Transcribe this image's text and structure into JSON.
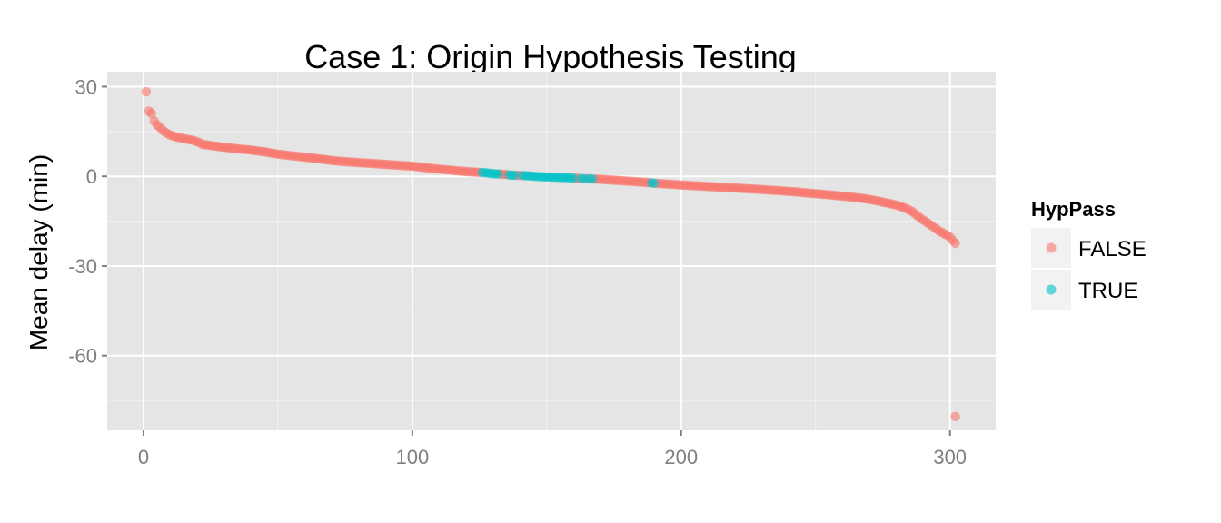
{
  "chart_data": {
    "type": "scatter",
    "title": "Case 1: Origin Hypothesis Testing",
    "xlabel": "",
    "ylabel": "Mean delay (min)",
    "xlim": [
      -13.5,
      317
    ],
    "ylim": [
      -85,
      35
    ],
    "x_ticks": [
      0,
      100,
      200,
      300
    ],
    "y_ticks": [
      30,
      0,
      -30,
      -60
    ],
    "grid": true,
    "legend": {
      "title": "HypPass",
      "position": "right",
      "entries": [
        {
          "label": "FALSE",
          "color": "#F8766D"
        },
        {
          "label": "TRUE",
          "color": "#00BFC4"
        }
      ]
    },
    "series": [
      {
        "name": "FALSE",
        "color": "#F8766D",
        "curve": [
          [
            1,
            28.3
          ],
          [
            2,
            21.8
          ],
          [
            3,
            21.0
          ],
          [
            4,
            18.5
          ],
          [
            5,
            17.2
          ],
          [
            6,
            16.5
          ],
          [
            7,
            15.5
          ],
          [
            8,
            14.8
          ],
          [
            9,
            14.3
          ],
          [
            10,
            13.8
          ],
          [
            12,
            13.2
          ],
          [
            15,
            12.6
          ],
          [
            18,
            12.1
          ],
          [
            20,
            11.6
          ],
          [
            22,
            10.7
          ],
          [
            25,
            10.3
          ],
          [
            30,
            9.7
          ],
          [
            35,
            9.2
          ],
          [
            40,
            8.8
          ],
          [
            45,
            8.2
          ],
          [
            50,
            7.4
          ],
          [
            55,
            6.9
          ],
          [
            60,
            6.4
          ],
          [
            65,
            5.9
          ],
          [
            70,
            5.3
          ],
          [
            75,
            4.9
          ],
          [
            80,
            4.6
          ],
          [
            85,
            4.3
          ],
          [
            90,
            4.0
          ],
          [
            95,
            3.7
          ],
          [
            100,
            3.4
          ],
          [
            105,
            2.9
          ],
          [
            110,
            2.4
          ],
          [
            115,
            2.0
          ],
          [
            120,
            1.6
          ],
          [
            125,
            1.3
          ],
          [
            130,
            0.9
          ],
          [
            135,
            0.6
          ],
          [
            140,
            0.3
          ],
          [
            145,
            0.0
          ],
          [
            150,
            -0.2
          ],
          [
            155,
            -0.4
          ],
          [
            160,
            -0.6
          ],
          [
            165,
            -0.8
          ],
          [
            170,
            -1.0
          ],
          [
            175,
            -1.3
          ],
          [
            180,
            -1.6
          ],
          [
            185,
            -1.9
          ],
          [
            190,
            -2.3
          ],
          [
            195,
            -2.6
          ],
          [
            200,
            -2.9
          ],
          [
            210,
            -3.4
          ],
          [
            220,
            -3.9
          ],
          [
            230,
            -4.4
          ],
          [
            240,
            -5.0
          ],
          [
            250,
            -5.8
          ],
          [
            260,
            -6.6
          ],
          [
            265,
            -7.1
          ],
          [
            270,
            -7.7
          ],
          [
            275,
            -8.6
          ],
          [
            280,
            -9.6
          ],
          [
            283,
            -10.5
          ],
          [
            286,
            -11.8
          ],
          [
            288,
            -13.3
          ],
          [
            290,
            -14.6
          ],
          [
            292,
            -15.8
          ],
          [
            294,
            -17.0
          ],
          [
            296,
            -18.3
          ],
          [
            298,
            -19.3
          ],
          [
            300,
            -20.3
          ],
          [
            301,
            -21.4
          ],
          [
            302,
            -22.4
          ]
        ],
        "extra_points": [
          [
            302,
            -80.4
          ]
        ],
        "exclude_x_ranges": [
          [
            126,
            132
          ],
          [
            136,
            138
          ],
          [
            141,
            160
          ],
          [
            163,
            164
          ],
          [
            166,
            167
          ],
          [
            189,
            190
          ]
        ]
      },
      {
        "name": "TRUE",
        "color": "#00BFC4",
        "points": [
          [
            126,
            1.3
          ],
          [
            127,
            1.2
          ],
          [
            128,
            1.1
          ],
          [
            129,
            1.0
          ],
          [
            130,
            0.9
          ],
          [
            131,
            0.8
          ],
          [
            132,
            0.8
          ],
          [
            136,
            0.5
          ],
          [
            137,
            0.4
          ],
          [
            138,
            0.4
          ],
          [
            141,
            0.3
          ],
          [
            142,
            0.2
          ],
          [
            143,
            0.2
          ],
          [
            144,
            0.1
          ],
          [
            145,
            0.0
          ],
          [
            146,
            0.0
          ],
          [
            147,
            -0.1
          ],
          [
            148,
            -0.1
          ],
          [
            149,
            -0.2
          ],
          [
            150,
            -0.2
          ],
          [
            151,
            -0.2
          ],
          [
            152,
            -0.3
          ],
          [
            153,
            -0.3
          ],
          [
            154,
            -0.3
          ],
          [
            155,
            -0.4
          ],
          [
            156,
            -0.4
          ],
          [
            157,
            -0.4
          ],
          [
            158,
            -0.5
          ],
          [
            159,
            -0.5
          ],
          [
            160,
            -0.6
          ],
          [
            163,
            -0.7
          ],
          [
            164,
            -0.8
          ],
          [
            166,
            -0.8
          ],
          [
            167,
            -0.9
          ],
          [
            189,
            -2.2
          ],
          [
            190,
            -2.3
          ]
        ]
      }
    ]
  }
}
